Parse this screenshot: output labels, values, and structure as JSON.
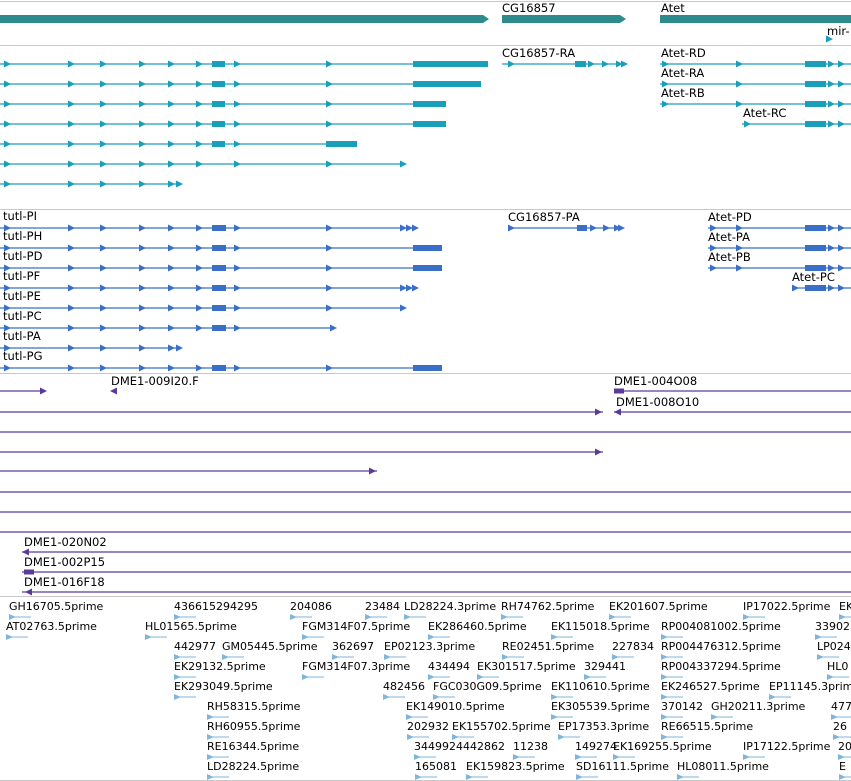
{
  "colors": {
    "gene": "#2e8b8b",
    "transcript": "#1a9fba",
    "cds": "#3a6fc8",
    "clone": "#5b3a9a",
    "est": "#7fb6da",
    "separator": "#c8c8c8"
  },
  "genes": {
    "labels": [
      "CG16857",
      "Atet",
      "mir-"
    ]
  },
  "transcripts": {
    "labels": [
      "CG16857-RA",
      "Atet-RD",
      "Atet-RA",
      "Atet-RB",
      "Atet-RC"
    ]
  },
  "proteins": {
    "tutl_labels": [
      "tutl-PI",
      "tutl-PH",
      "tutl-PD",
      "tutl-PF",
      "tutl-PE",
      "tutl-PC",
      "tutl-PA",
      "tutl-PG"
    ],
    "other_labels": [
      "CG16857-PA",
      "Atet-PD",
      "Atet-PA",
      "Atet-PB",
      "Atet-PC"
    ]
  },
  "clones": {
    "labels": [
      "DME1-009I20.F",
      "DME1-004O08",
      "DME1-008O10",
      "DME1-020N02",
      "DME1-002P15",
      "DME1-016F18"
    ]
  },
  "ests": {
    "rows": [
      [
        "GH16705.5prime",
        "436615294295",
        "204086",
        "23484",
        "LD28224.3prime",
        "RH74762.5prime",
        "EK201607.5prime",
        "IP17022.5prime",
        "EK"
      ],
      [
        "AT02763.5prime",
        "HL01565.5prime",
        "FGM314F07.5prime",
        "EK286460.5prime",
        "EK115018.5prime",
        "RP004081002.5prime",
        "33902"
      ],
      [
        "442977",
        "GM05445.5prime",
        "362697",
        "EP02123.3prime",
        "RE02451.5prime",
        "227834",
        "RP004476312.5prime",
        "LP024"
      ],
      [
        "EK29132.5prime",
        "FGM314F07.3prime",
        "434494",
        "EK301517.5prime",
        "329441",
        "RP004337294.5prime",
        "HL0"
      ],
      [
        "EK293049.5prime",
        "482456",
        "FGC030G09.5prime",
        "EK110610.5prime",
        "EK246527.5prime",
        "EP11145.3prime"
      ],
      [
        "RH58315.5prime",
        "EK149010.5prime",
        "EK305539.5prime",
        "370142",
        "GH20211.3prime",
        "477"
      ],
      [
        "RH60955.5prime",
        "202932",
        "EK155702.5prime",
        "EP17353.3prime",
        "RE66515.5prime",
        "26"
      ],
      [
        "RE16344.5prime",
        "3449924442862",
        "11238",
        "149274",
        "EK169255.5prime",
        "IP17122.5prime",
        "20"
      ],
      [
        "LD28224.5prime",
        "165081",
        "EK159823.5prime",
        "SD16111.5prime",
        "HL08011.5prime",
        "E"
      ]
    ]
  }
}
